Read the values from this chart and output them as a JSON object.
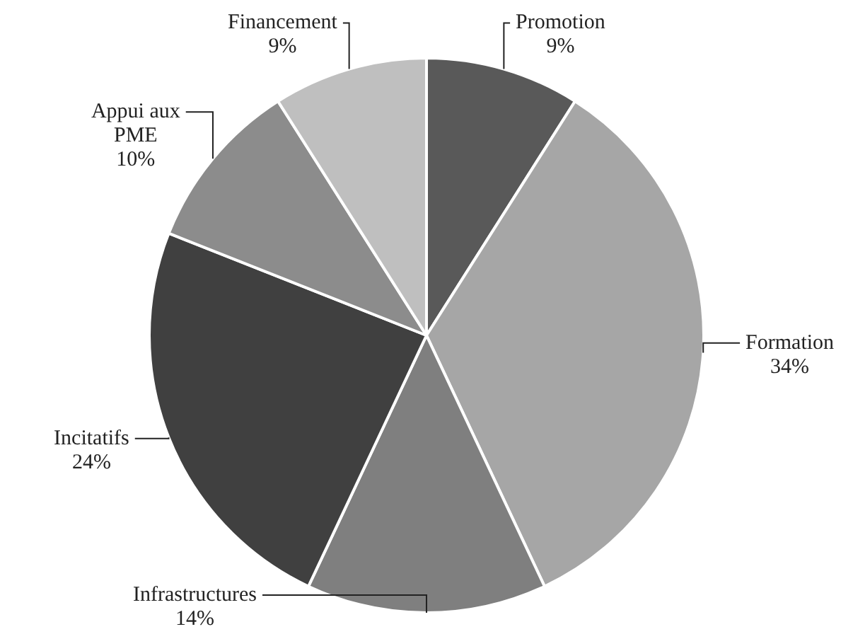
{
  "chart_data": {
    "type": "pie",
    "categories": [
      "Promotion",
      "Formation",
      "Infrastructures",
      "Incitatifs",
      "Appui aux PME",
      "Financement"
    ],
    "values": [
      9,
      34,
      14,
      24,
      10,
      9
    ],
    "value_labels": [
      "9%",
      "34%",
      "14%",
      "24%",
      "10%",
      "9%"
    ],
    "colors": [
      "#595959",
      "#a6a6a6",
      "#7f7f7f",
      "#404040",
      "#8c8c8c",
      "#bfbfbf"
    ],
    "legend": false
  }
}
